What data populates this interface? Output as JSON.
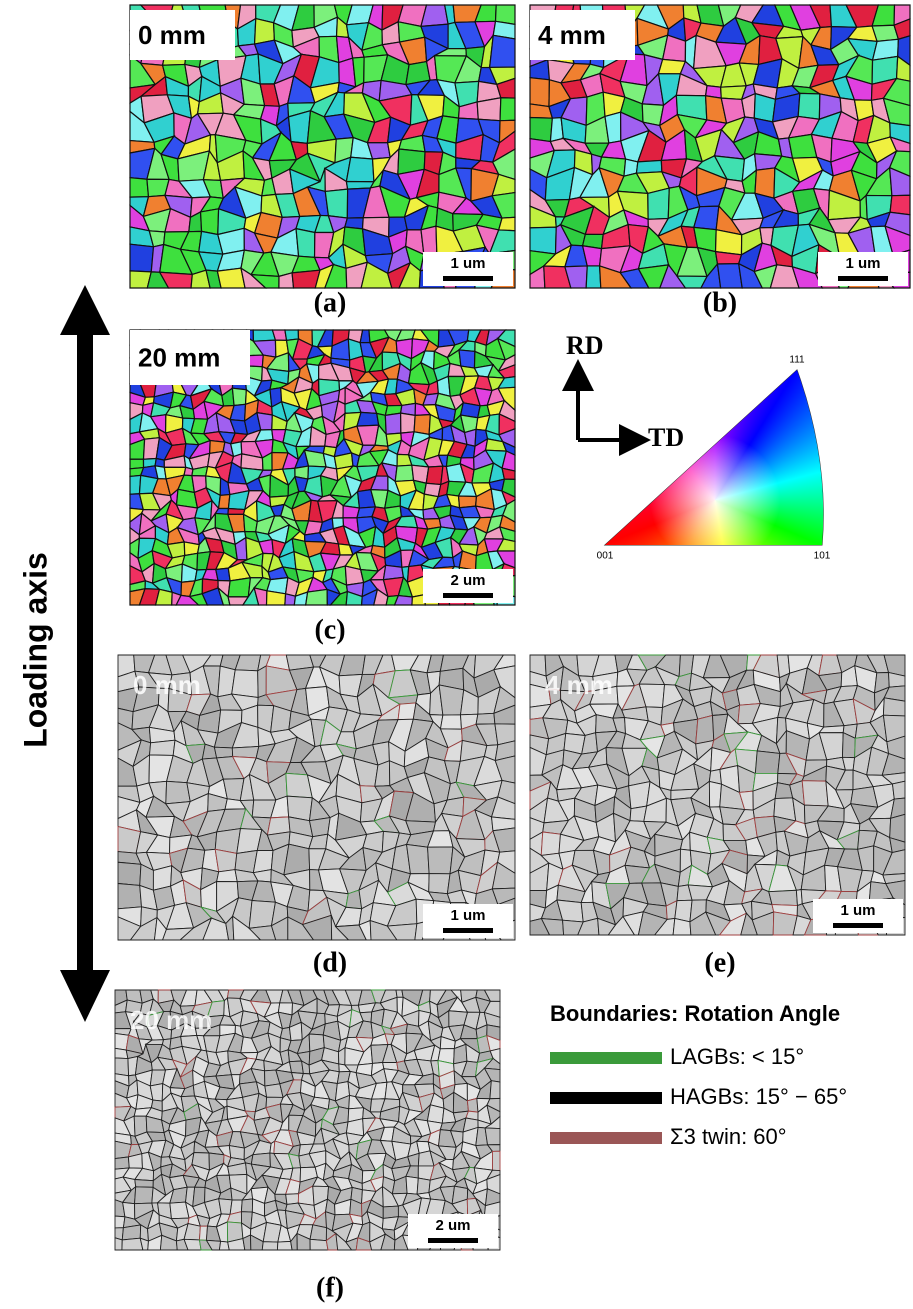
{
  "panels": [
    {
      "tag": "0 mm",
      "scale_bar": "1 um",
      "caption": "(a)"
    },
    {
      "tag": "4 mm",
      "scale_bar": "1 um",
      "caption": "(b)"
    },
    {
      "tag": "20 mm",
      "scale_bar": "2 um",
      "caption": "(c)"
    },
    {
      "tag": "0 mm",
      "scale_bar": "1 um",
      "caption": "(d)"
    },
    {
      "tag": "4 mm",
      "scale_bar": "1 um",
      "caption": "(e)"
    },
    {
      "tag": "20 mm",
      "scale_bar": "2 um",
      "caption": "(f)"
    }
  ],
  "axis_label": "Loading axis",
  "orientation": {
    "rd": "RD",
    "td": "TD"
  },
  "ipf": {
    "top": "111",
    "left": "001",
    "right": "101"
  },
  "legend": {
    "title": "Boundaries: Rotation Angle",
    "entries": [
      "LAGBs: < 15°",
      "HAGBs: 15° −  65°",
      "Σ3 twin: 60°"
    ]
  }
}
